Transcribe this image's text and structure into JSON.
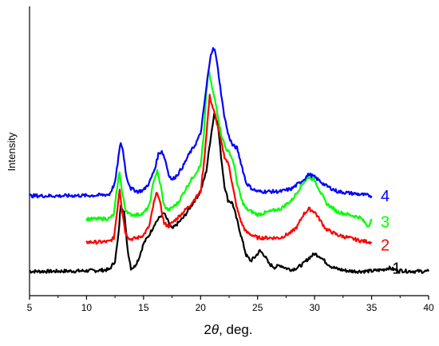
{
  "chart_data": {
    "type": "line",
    "xlabel_prefix": "2",
    "xlabel_symbol": "θ",
    "xlabel_suffix": ", deg.",
    "ylabel": "Intensity",
    "xlim": [
      5,
      40
    ],
    "ylim": [
      0,
      10
    ],
    "x_ticks": [
      5,
      10,
      15,
      20,
      25,
      30,
      35,
      40
    ],
    "x_tick_labels": [
      "5",
      "10",
      "15",
      "20",
      "25",
      "30",
      "35",
      "40"
    ],
    "grid": false,
    "legend": "none",
    "series": [
      {
        "name": "1",
        "color": "#000000",
        "x": [
          5,
          6,
          7,
          8,
          9,
          10,
          11,
          12,
          12.5,
          12.8,
          13.0,
          13.3,
          13.6,
          13.9,
          14.2,
          14.6,
          15.0,
          15.5,
          16.0,
          16.5,
          16.8,
          17.1,
          17.5,
          18.0,
          18.5,
          19.0,
          19.5,
          20.0,
          20.5,
          20.9,
          21.2,
          21.5,
          21.8,
          22.1,
          22.4,
          22.8,
          23.2,
          23.6,
          24.0,
          24.4,
          24.8,
          25.2,
          25.6,
          26.0,
          26.5,
          27.0,
          27.5,
          28.0,
          28.5,
          29.0,
          29.5,
          30.0,
          30.5,
          31.0,
          31.5,
          32.0,
          33,
          34,
          35,
          36,
          36.5,
          37,
          38,
          39,
          40
        ],
        "y": [
          0.84,
          0.84,
          0.84,
          0.85,
          0.85,
          0.86,
          0.87,
          0.9,
          1.2,
          2.1,
          3.15,
          2.9,
          1.6,
          0.95,
          1.0,
          1.3,
          1.8,
          2.1,
          2.5,
          2.75,
          2.85,
          2.6,
          2.3,
          2.5,
          2.7,
          3.0,
          3.3,
          3.6,
          4.3,
          5.5,
          6.3,
          6.0,
          4.8,
          3.8,
          3.3,
          3.2,
          2.6,
          2.0,
          1.4,
          1.2,
          1.35,
          1.55,
          1.4,
          1.1,
          0.98,
          1.05,
          0.95,
          0.9,
          0.97,
          1.1,
          1.3,
          1.45,
          1.35,
          1.15,
          1.0,
          0.92,
          0.85,
          0.84,
          0.85,
          0.9,
          0.96,
          0.9,
          0.85,
          0.84,
          0.84
        ]
      },
      {
        "name": "2",
        "color": "#ff0000",
        "x": [
          10,
          11,
          12,
          12.4,
          12.7,
          12.9,
          13.1,
          13.4,
          13.8,
          14.5,
          15.0,
          15.5,
          15.9,
          16.2,
          16.5,
          16.8,
          17.2,
          18.0,
          19.0,
          20.0,
          20.3,
          20.6,
          20.8,
          21.0,
          21.3,
          21.7,
          22.1,
          22.5,
          22.8,
          23.2,
          23.6,
          24.0,
          24.5,
          25,
          26,
          27,
          28,
          28.5,
          29,
          29.5,
          30,
          30.5,
          31,
          32,
          33,
          34,
          35
        ],
        "y": [
          1.85,
          1.85,
          1.87,
          2.0,
          3.0,
          3.7,
          3.0,
          2.2,
          1.95,
          2.0,
          2.1,
          2.4,
          3.2,
          3.6,
          3.1,
          2.5,
          2.4,
          2.7,
          3.1,
          3.6,
          4.6,
          6.0,
          6.9,
          6.6,
          6.2,
          5.5,
          4.8,
          4.5,
          3.8,
          3.0,
          2.5,
          2.2,
          2.1,
          2.0,
          2.0,
          2.0,
          2.2,
          2.4,
          2.8,
          3.0,
          2.9,
          2.6,
          2.3,
          2.1,
          2.0,
          1.9,
          1.85
        ]
      },
      {
        "name": "3",
        "color": "#00ff00",
        "x": [
          10,
          11,
          12,
          12.4,
          12.7,
          12.9,
          13.1,
          13.4,
          13.8,
          14.5,
          15.0,
          15.5,
          15.9,
          16.2,
          16.5,
          16.8,
          17.2,
          18.0,
          19.0,
          20.0,
          20.3,
          20.5,
          20.7,
          21.0,
          21.4,
          21.8,
          22.2,
          22.6,
          22.9,
          23.2,
          23.6,
          24.0,
          24.5,
          25,
          26,
          27,
          28,
          28.5,
          29,
          29.5,
          30,
          30.5,
          31,
          32,
          33,
          34,
          34.7,
          35
        ],
        "y": [
          2.65,
          2.65,
          2.67,
          2.8,
          3.8,
          4.3,
          3.6,
          3.0,
          2.8,
          2.8,
          2.85,
          3.1,
          4.0,
          4.3,
          3.8,
          3.1,
          2.95,
          3.2,
          3.9,
          4.5,
          5.6,
          7.0,
          7.8,
          7.2,
          6.5,
          5.6,
          5.1,
          4.9,
          4.6,
          3.9,
          3.3,
          3.0,
          2.9,
          2.8,
          2.9,
          3.0,
          3.3,
          3.6,
          3.9,
          4.1,
          4.0,
          3.6,
          3.2,
          2.9,
          2.8,
          2.7,
          2.4,
          2.65
        ]
      },
      {
        "name": "4",
        "color": "#0000ff",
        "x": [
          5,
          6,
          7,
          8,
          9,
          10,
          11,
          12,
          12.5,
          12.8,
          13.0,
          13.2,
          13.5,
          13.9,
          14.5,
          15.0,
          15.5,
          16.0,
          16.3,
          16.6,
          16.9,
          17.2,
          17.5,
          18.0,
          18.5,
          19.0,
          19.5,
          20.0,
          20.3,
          20.6,
          20.9,
          21.1,
          21.3,
          21.6,
          22.0,
          22.4,
          22.8,
          23.2,
          23.6,
          24.0,
          24.5,
          25,
          26,
          27,
          28,
          28.5,
          29,
          29.5,
          30,
          30.5,
          31,
          32,
          33,
          34,
          35
        ],
        "y": [
          3.45,
          3.45,
          3.45,
          3.45,
          3.46,
          3.46,
          3.47,
          3.5,
          3.9,
          4.8,
          5.3,
          5.0,
          4.1,
          3.7,
          3.6,
          3.65,
          3.9,
          4.4,
          4.9,
          5.0,
          4.7,
          4.2,
          4.0,
          4.2,
          4.5,
          4.9,
          5.2,
          5.6,
          6.5,
          7.5,
          8.3,
          8.6,
          8.4,
          7.6,
          6.4,
          5.6,
          5.2,
          5.1,
          4.5,
          3.9,
          3.7,
          3.6,
          3.6,
          3.6,
          3.7,
          3.85,
          4.0,
          4.2,
          4.1,
          3.95,
          3.8,
          3.6,
          3.55,
          3.5,
          3.45
        ]
      }
    ],
    "series_labels": [
      {
        "text": "1",
        "color": "#000000",
        "x": 36.8,
        "y": 0.95
      },
      {
        "text": "2",
        "color": "#ff0000",
        "x": 35.8,
        "y": 1.75
      },
      {
        "text": "3",
        "color": "#00ff00",
        "x": 35.8,
        "y": 2.55
      },
      {
        "text": "4",
        "color": "#0000ff",
        "x": 35.8,
        "y": 3.45
      }
    ]
  }
}
